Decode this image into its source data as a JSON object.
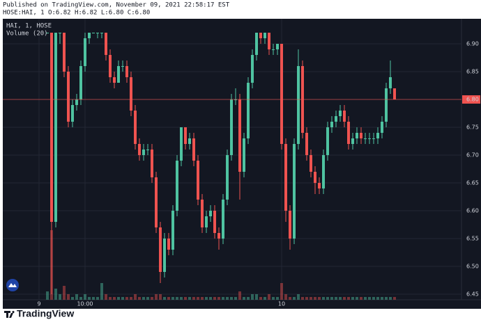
{
  "header": {
    "published": "Published on TradingView.com, November 09, 2021 22:58:17 EST",
    "ohlc": "HOSE:HAI, 1 O:6.82 H:6.82 L:6.80 C:6.80"
  },
  "footer": {
    "brand": "TradingView"
  },
  "chart_data": {
    "type": "candlestick",
    "legend_title": "HAI, 1, HOSE",
    "up_color": "#4fc3a1",
    "down_color": "#ef5350",
    "grid": true,
    "categories": [
      "9",
      null,
      null,
      null,
      null,
      null,
      null,
      null,
      null,
      null,
      null,
      "10:00",
      null,
      null,
      null,
      null,
      null,
      null,
      null,
      null,
      null,
      null,
      null,
      null,
      null,
      null,
      null,
      null,
      null,
      null,
      null,
      null,
      null,
      null,
      null,
      null,
      null,
      null,
      null,
      null,
      null,
      null,
      null,
      null,
      null,
      null,
      null,
      null,
      null,
      null,
      null,
      null,
      null,
      null,
      null,
      null,
      null,
      null,
      "10",
      null,
      null,
      null,
      null,
      null,
      null,
      null,
      null,
      null,
      null,
      null,
      null,
      null,
      null,
      null,
      null,
      null,
      null,
      null,
      null,
      null,
      null,
      null,
      null,
      null,
      null,
      null
    ],
    "open": [
      null,
      null,
      6.92,
      6.92,
      6.58,
      6.92,
      6.92,
      6.85,
      6.76,
      6.79,
      6.8,
      6.86,
      6.91,
      6.92,
      6.92,
      6.92,
      6.92,
      6.88,
      6.84,
      6.83,
      6.86,
      6.86,
      6.84,
      6.78,
      6.72,
      6.7,
      6.71,
      6.71,
      6.66,
      6.57,
      6.49,
      6.55,
      6.53,
      6.6,
      6.69,
      6.75,
      6.72,
      6.73,
      6.69,
      6.62,
      6.57,
      6.59,
      6.6,
      6.56,
      6.55,
      6.62,
      6.7,
      6.8,
      6.8,
      6.67,
      6.73,
      6.83,
      6.88,
      6.92,
      6.91,
      6.92,
      6.89,
      6.89,
      6.9,
      6.72,
      6.6,
      6.55,
      6.72,
      6.86,
      6.74,
      6.7,
      6.67,
      6.65,
      6.64,
      6.7,
      6.75,
      6.76,
      6.77,
      6.78,
      6.76,
      6.72,
      6.73,
      6.74,
      6.73,
      6.73,
      6.73,
      6.73,
      6.74,
      6.76,
      6.82,
      6.82
    ],
    "high": [
      null,
      null,
      6.92,
      6.92,
      6.92,
      6.92,
      6.92,
      6.86,
      6.8,
      6.81,
      6.87,
      6.92,
      6.92,
      6.92,
      6.92,
      6.92,
      6.92,
      6.89,
      6.85,
      6.87,
      6.87,
      6.87,
      6.85,
      6.79,
      6.73,
      6.72,
      6.72,
      6.72,
      6.67,
      6.58,
      6.56,
      6.56,
      6.61,
      6.7,
      6.75,
      6.75,
      6.74,
      6.74,
      6.7,
      6.63,
      6.6,
      6.61,
      6.61,
      6.57,
      6.63,
      6.71,
      6.81,
      6.82,
      6.81,
      6.74,
      6.84,
      6.89,
      6.92,
      6.92,
      6.92,
      6.92,
      6.9,
      6.9,
      6.9,
      6.73,
      6.61,
      6.73,
      6.89,
      6.87,
      6.75,
      6.71,
      6.68,
      6.66,
      6.71,
      6.76,
      6.77,
      6.78,
      6.79,
      6.79,
      6.77,
      6.74,
      6.75,
      6.75,
      6.74,
      6.74,
      6.74,
      6.75,
      6.77,
      6.83,
      6.87,
      6.82
    ],
    "low": [
      null,
      null,
      6.92,
      6.45,
      6.57,
      6.9,
      6.84,
      6.75,
      6.75,
      6.78,
      6.79,
      6.85,
      6.9,
      6.92,
      6.91,
      6.91,
      6.87,
      6.83,
      6.82,
      6.83,
      6.85,
      6.83,
      6.77,
      6.71,
      6.69,
      6.69,
      6.7,
      6.65,
      6.56,
      6.47,
      6.48,
      6.52,
      6.52,
      6.59,
      6.68,
      6.71,
      6.71,
      6.68,
      6.61,
      6.56,
      6.56,
      6.58,
      6.55,
      6.53,
      6.54,
      6.61,
      6.69,
      6.79,
      6.62,
      6.66,
      6.72,
      6.82,
      6.87,
      6.9,
      6.9,
      6.88,
      6.88,
      6.88,
      6.71,
      6.58,
      6.53,
      6.54,
      6.71,
      6.73,
      6.69,
      6.66,
      6.63,
      6.63,
      6.63,
      6.69,
      6.74,
      6.75,
      6.76,
      6.75,
      6.71,
      6.71,
      6.72,
      6.72,
      6.72,
      6.72,
      6.72,
      6.72,
      6.73,
      6.75,
      6.81,
      6.8
    ],
    "close": [
      null,
      null,
      6.92,
      6.58,
      6.92,
      6.92,
      6.85,
      6.76,
      6.79,
      6.8,
      6.86,
      6.91,
      6.92,
      6.92,
      6.92,
      6.92,
      6.88,
      6.84,
      6.83,
      6.86,
      6.86,
      6.84,
      6.78,
      6.72,
      6.7,
      6.71,
      6.71,
      6.66,
      6.57,
      6.49,
      6.55,
      6.53,
      6.6,
      6.69,
      6.75,
      6.72,
      6.73,
      6.69,
      6.62,
      6.57,
      6.59,
      6.6,
      6.56,
      6.55,
      6.62,
      6.7,
      6.8,
      6.8,
      6.67,
      6.73,
      6.83,
      6.88,
      6.92,
      6.91,
      6.92,
      6.89,
      6.89,
      6.9,
      6.72,
      6.6,
      6.55,
      6.72,
      6.86,
      6.74,
      6.7,
      6.67,
      6.65,
      6.64,
      6.7,
      6.75,
      6.76,
      6.77,
      6.78,
      6.76,
      6.72,
      6.73,
      6.74,
      6.73,
      6.73,
      6.73,
      6.73,
      6.74,
      6.76,
      6.82,
      6.84,
      6.8
    ],
    "volume": {
      "name": "Volume (20)",
      "ylim": [
        0,
        25
      ],
      "values": [
        null,
        null,
        3,
        25,
        4,
        2,
        5,
        2,
        1,
        2,
        1,
        2,
        1,
        1,
        1,
        6,
        2,
        1,
        1,
        1,
        1,
        1,
        1,
        2,
        1,
        1,
        1,
        1,
        2,
        2,
        1,
        1,
        1,
        1,
        1,
        1,
        1,
        1,
        1,
        1,
        1,
        1,
        1,
        1,
        1,
        1,
        1,
        1,
        3,
        1,
        1,
        2,
        2,
        1,
        1,
        2,
        1,
        1,
        6,
        2,
        1,
        1,
        2,
        1,
        1,
        1,
        1,
        1,
        1,
        1,
        1,
        1,
        1,
        1,
        1,
        1,
        1,
        1,
        1,
        1,
        1,
        1,
        1,
        1,
        1,
        1
      ]
    },
    "last_price": {
      "value": 6.8,
      "label": "6.80"
    },
    "ylim": [
      6.44,
      6.945
    ],
    "yticks": [
      6.45,
      {
        "value": 6.5,
        "label": "6.50"
      },
      6.55,
      {
        "value": 6.6,
        "label": "6.60"
      },
      6.65,
      {
        "value": 6.7,
        "label": "6.70"
      },
      6.75,
      {
        "value": 6.8,
        "label": "6.80"
      },
      6.85,
      {
        "value": 6.9,
        "label": "6.90"
      }
    ]
  }
}
